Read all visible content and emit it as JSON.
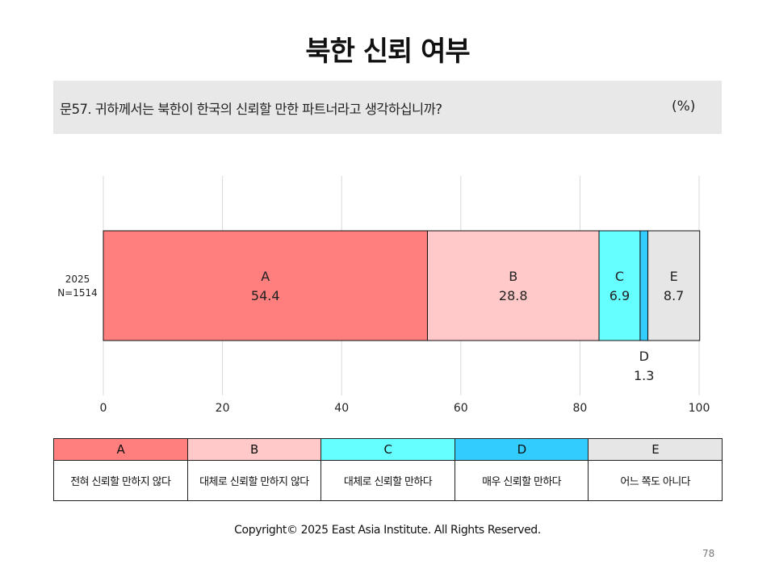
{
  "page": {
    "title": "북한 신뢰 여부",
    "question": "문57. 귀하께서는 북한이 한국의 신뢰할 만한 파트너라고 생각하십니까?",
    "unit": "(%)",
    "copyright": "Copyright© 2025 East Asia Institute. All Rights Reserved.",
    "page_number": "78"
  },
  "chart_data": {
    "type": "bar",
    "orientation": "horizontal",
    "stacked": true,
    "categories": [
      "2025\nN=1514"
    ],
    "series": [
      {
        "name": "A",
        "values": [
          54.4
        ],
        "color": "#ff7f7f"
      },
      {
        "name": "B",
        "values": [
          28.8
        ],
        "color": "#ffc9c9"
      },
      {
        "name": "C",
        "values": [
          6.9
        ],
        "color": "#66ffff"
      },
      {
        "name": "D",
        "values": [
          1.3
        ],
        "color": "#33ccff"
      },
      {
        "name": "E",
        "values": [
          8.7
        ],
        "color": "#e6e6e6"
      }
    ],
    "xlim": [
      0,
      100
    ],
    "xticks": [
      0,
      20,
      40,
      60,
      80,
      100
    ],
    "grid": true,
    "legend": [
      {
        "key": "A",
        "label": "전혀 신뢰할 만하지 않다",
        "color": "#ff7f7f"
      },
      {
        "key": "B",
        "label": "대체로 신뢰할 만하지 않다",
        "color": "#ffc9c9"
      },
      {
        "key": "C",
        "label": "대체로 신뢰할 만하다",
        "color": "#66ffff"
      },
      {
        "key": "D",
        "label": "매우 신뢰할 만하다",
        "color": "#33ccff"
      },
      {
        "key": "E",
        "label": "어느 쪽도 아니다",
        "color": "#e6e6e6"
      }
    ]
  }
}
